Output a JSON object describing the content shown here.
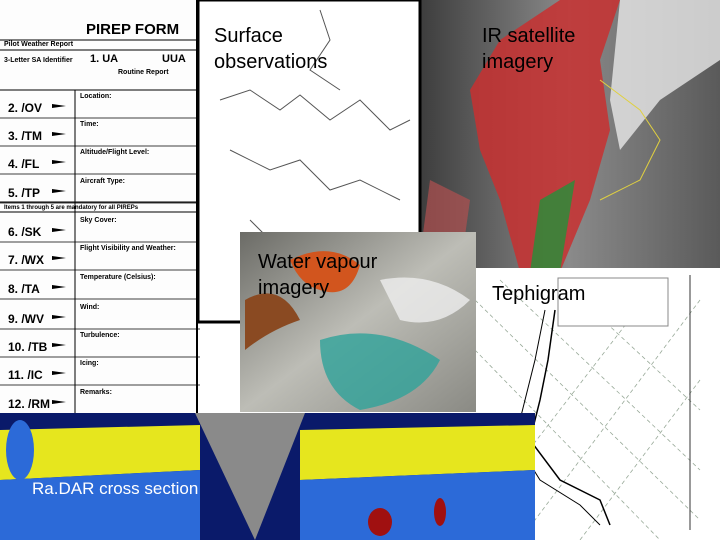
{
  "pirep_form": {
    "title": "PIREP  FORM",
    "subtitle": "Pilot Weather Report",
    "identifier_label": "3-Letter SA Identifier",
    "ua": "1.  UA",
    "uua": "UUA",
    "routine": "Routine Report",
    "mandatory_note": "Items 1 through 5 are mandatory for all PIREPs",
    "rows": [
      {
        "code": "2.  /OV",
        "label": "Location:"
      },
      {
        "code": "3.  /TM",
        "label": "Time:"
      },
      {
        "code": "4.  /FL",
        "label": "Altitude/Flight Level:"
      },
      {
        "code": "5.  /TP",
        "label": "Aircraft Type:"
      },
      {
        "code": "6.  /SK",
        "label": "Sky Cover:"
      },
      {
        "code": "7.  /WX",
        "label": "Flight Visibility and Weather:"
      },
      {
        "code": "8.  /TA",
        "label": "Temperature (Celsius):"
      },
      {
        "code": "9.  /WV",
        "label": "Wind:"
      },
      {
        "code": "10.  /TB",
        "label": "Turbulence:"
      },
      {
        "code": "11.  /IC",
        "label": "Icing:"
      },
      {
        "code": "12.  /RM",
        "label": "Remarks:"
      }
    ]
  },
  "panels": {
    "surface": {
      "caption": [
        "Surface",
        "observations"
      ]
    },
    "ir_satellite": {
      "caption": [
        "IR satellite",
        "imagery"
      ]
    },
    "water_vapour": {
      "caption": [
        "Water vapour",
        "imagery"
      ]
    },
    "tephigram": {
      "caption": [
        "Tephigram"
      ]
    },
    "radar": {
      "caption": [
        "Ra.DAR cross section"
      ]
    }
  }
}
